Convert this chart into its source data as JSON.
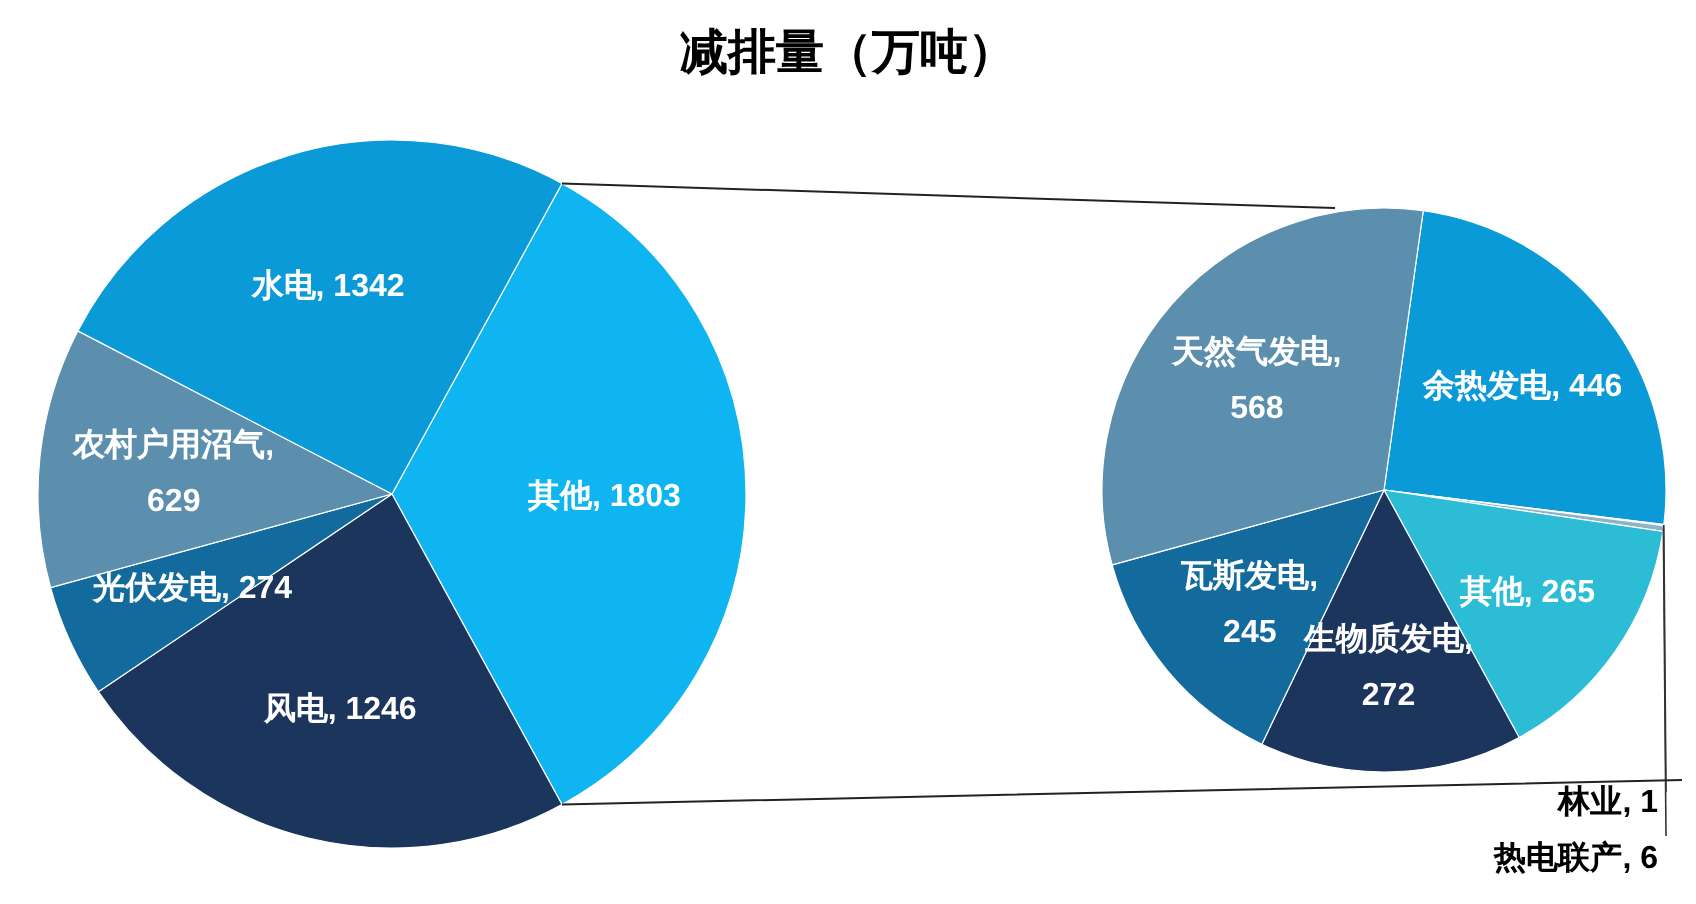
{
  "chart_data": [
    {
      "type": "pie",
      "title": "减排量（万吨）",
      "categories": [
        "其他",
        "风电",
        "光伏发电",
        "农村户用沼气",
        "水电"
      ],
      "values": [
        1803,
        1246,
        274,
        629,
        1342
      ],
      "value_labels": [
        ", 1803",
        ", 1246",
        ", 274",
        ", 629",
        ", 1342"
      ],
      "colors": [
        "#0fb5f0",
        "#1b355c",
        "#136a9c",
        "#5b8fad",
        "#0a9ad8"
      ]
    },
    {
      "type": "pie",
      "categories": [
        "余热发电",
        "林业",
        "热电联产",
        "其他",
        "生物质发电",
        "瓦斯发电",
        "天然气发电"
      ],
      "values": [
        446,
        1,
        6,
        265,
        272,
        245,
        568
      ],
      "value_labels": [
        ", 446",
        ", 1",
        ", 6",
        ", 265",
        ", 272",
        ", 245",
        ", 568"
      ],
      "colors": [
        "#0a9ad8",
        "#a9c6d6",
        "#8fb3c9",
        "#2cbcd6",
        "#1b355c",
        "#136a9c",
        "#5b8fad"
      ]
    }
  ]
}
